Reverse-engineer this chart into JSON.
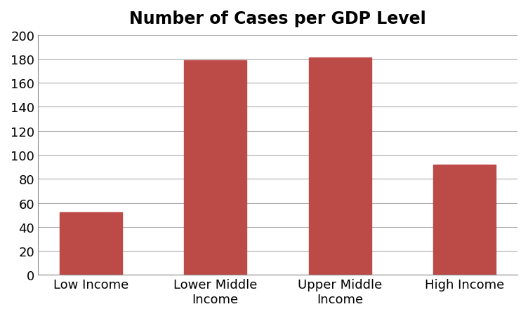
{
  "title": "Number of Cases per GDP Level",
  "categories": [
    "Low Income",
    "Lower Middle\nIncome",
    "Upper Middle\nIncome",
    "High Income"
  ],
  "values": [
    52,
    179,
    181,
    92
  ],
  "bar_color": "#bc4a47",
  "ylim": [
    0,
    200
  ],
  "yticks": [
    0,
    20,
    40,
    60,
    80,
    100,
    120,
    140,
    160,
    180,
    200
  ],
  "title_fontsize": 17,
  "tick_fontsize": 13,
  "bar_width": 0.5,
  "background_color": "#ffffff",
  "grid_color": "#aaaaaa",
  "border_color": "#888888"
}
